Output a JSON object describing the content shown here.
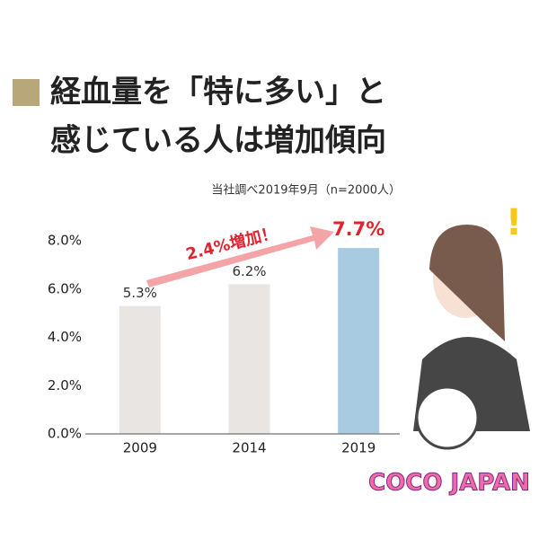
{
  "chart_data": {
    "type": "bar",
    "title": [
      "経血量を「特に多い」と",
      "感じている人は増加傾向"
    ],
    "source": "当社調べ2019年9月（n=2000人）",
    "annotation": "2.4%増加！",
    "categories": [
      "2009",
      "2014",
      "2019"
    ],
    "values": [
      5.3,
      6.2,
      7.7
    ],
    "value_labels": [
      "5.3%",
      "6.2%",
      "7.7%"
    ],
    "colors": [
      "#e9e5e3",
      "#e9e5e3",
      "#a8cbe2"
    ],
    "label_colors": [
      "#333333",
      "#333333",
      "#e0242f"
    ],
    "ylim": [
      0,
      8
    ],
    "yticks": [
      {
        "value": 0,
        "label": "0.0%"
      },
      {
        "value": 2,
        "label": "2.0%"
      },
      {
        "value": 4,
        "label": "4.0%"
      },
      {
        "value": 6,
        "label": "6.0%"
      },
      {
        "value": 8,
        "label": "8.0%"
      }
    ],
    "grid": false,
    "logo": "COCO JAPAN"
  }
}
